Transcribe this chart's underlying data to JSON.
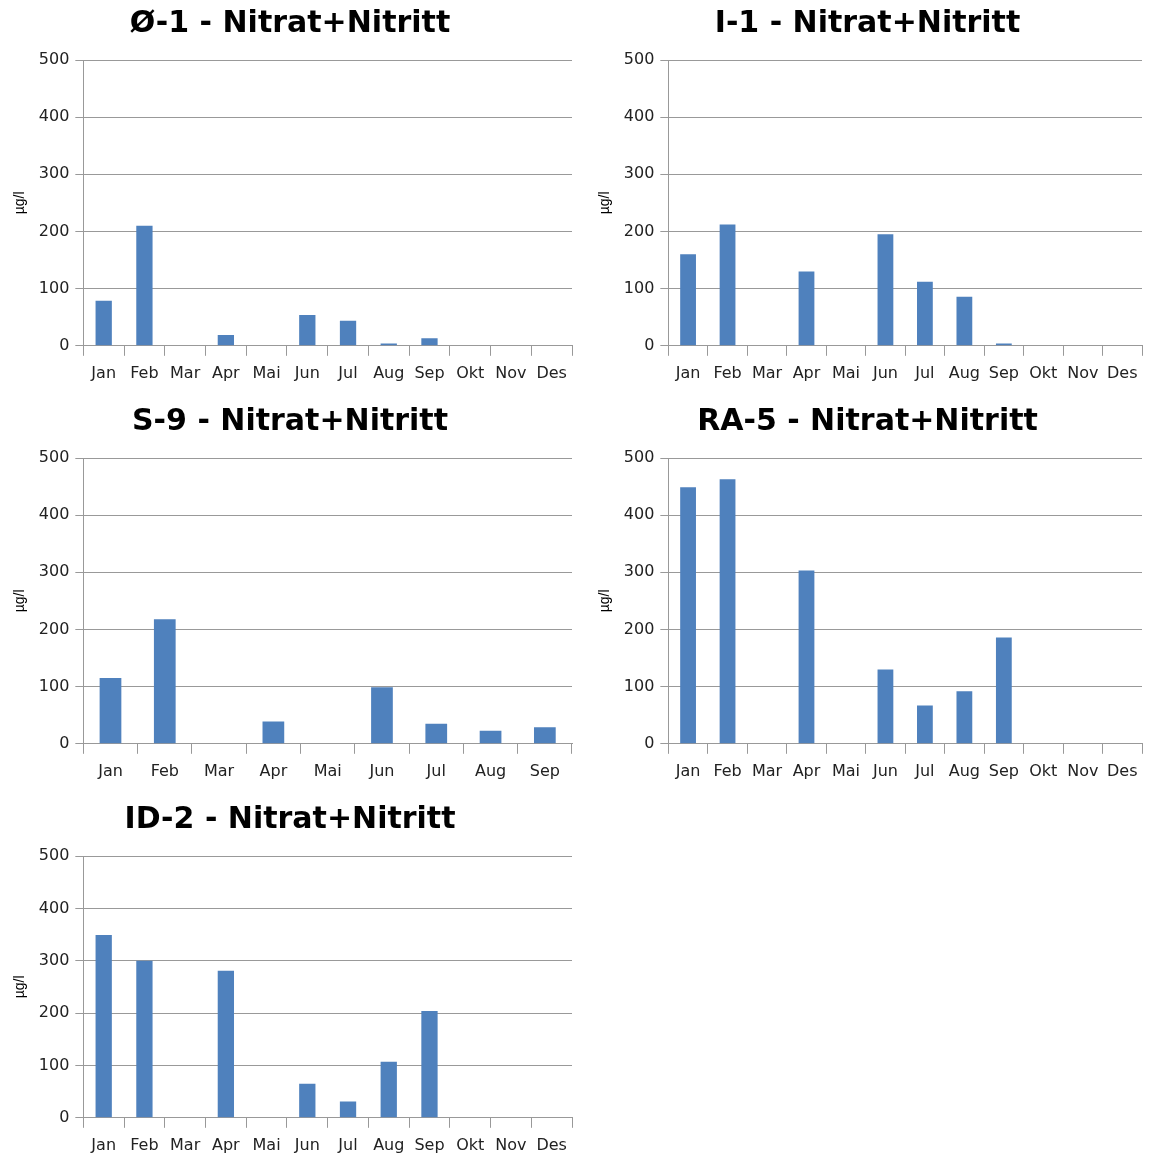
{
  "chart_data": [
    {
      "type": "bar",
      "title": "Ø-1 - Nitrat+Nitritt",
      "ylabel": "µg/l",
      "categories": [
        "Jan",
        "Feb",
        "Mar",
        "Apr",
        "Mai",
        "Jun",
        "Jul",
        "Aug",
        "Sep",
        "Okt",
        "Nov",
        "Des"
      ],
      "values": [
        79,
        210,
        null,
        19,
        null,
        54,
        44,
        4,
        13,
        null,
        null,
        null
      ],
      "color": "#4f81bd",
      "ylim": [
        0,
        500
      ],
      "yticks": [
        0,
        100,
        200,
        300,
        400,
        500
      ],
      "grid": "y"
    },
    {
      "type": "bar",
      "title": "I-1 - Nitrat+Nitritt",
      "ylabel": "µg/l",
      "categories": [
        "Jan",
        "Feb",
        "Mar",
        "Apr",
        "Mai",
        "Jun",
        "Jul",
        "Aug",
        "Sep",
        "Okt",
        "Nov",
        "Des"
      ],
      "values": [
        160,
        212,
        null,
        130,
        null,
        195,
        112,
        86,
        4,
        null,
        null,
        null
      ],
      "color": "#4f81bd",
      "ylim": [
        0,
        500
      ],
      "yticks": [
        0,
        100,
        200,
        300,
        400,
        500
      ],
      "grid": "y"
    },
    {
      "type": "bar",
      "title": "S-9 - Nitrat+Nitritt",
      "ylabel": "µg/l",
      "categories": [
        "Jan",
        "Feb",
        "Mar",
        "Apr",
        "Mai",
        "Jun",
        "Jul",
        "Aug",
        "Sep"
      ],
      "values": [
        115,
        218,
        null,
        39,
        null,
        99,
        35,
        23,
        29
      ],
      "color": "#4f81bd",
      "ylim": [
        0,
        500
      ],
      "yticks": [
        0,
        100,
        200,
        300,
        400,
        500
      ],
      "grid": "y"
    },
    {
      "type": "bar",
      "title": "RA-5 - Nitrat+Nitritt",
      "ylabel": "µg/l",
      "categories": [
        "Jan",
        "Feb",
        "Mar",
        "Apr",
        "Mai",
        "Jun",
        "Jul",
        "Aug",
        "Sep",
        "Okt",
        "Nov",
        "Des"
      ],
      "values": [
        449,
        463,
        null,
        303,
        null,
        130,
        67,
        92,
        186,
        null,
        null,
        null
      ],
      "color": "#4f81bd",
      "ylim": [
        0,
        500
      ],
      "yticks": [
        0,
        100,
        200,
        300,
        400,
        500
      ],
      "grid": "y"
    },
    {
      "type": "bar",
      "title": "ID-2 - Nitrat+Nitritt",
      "ylabel": "µg/l",
      "categories": [
        "Jan",
        "Feb",
        "Mar",
        "Apr",
        "Mai",
        "Jun",
        "Jul",
        "Aug",
        "Sep",
        "Okt",
        "Nov",
        "Des"
      ],
      "values": [
        349,
        300,
        null,
        281,
        null,
        65,
        31,
        107,
        204,
        null,
        null,
        null
      ],
      "color": "#4f81bd",
      "ylim": [
        0,
        500
      ],
      "yticks": [
        0,
        100,
        200,
        300,
        400,
        500
      ],
      "grid": "y"
    }
  ]
}
